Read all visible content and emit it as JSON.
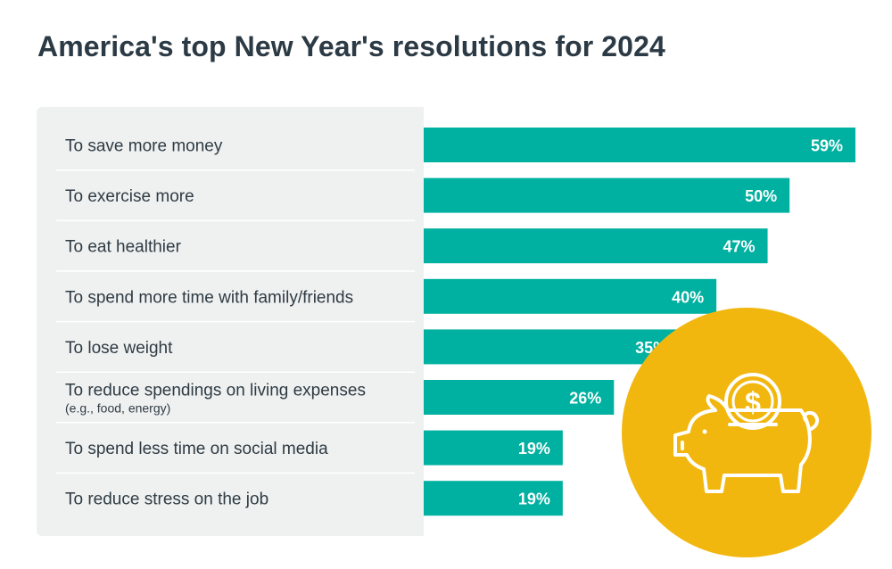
{
  "title": "America's top New Year's resolutions for 2024",
  "colors": {
    "bar": "#00b0a0",
    "panel": "#eff1f1",
    "circle": "#f2b70f",
    "label_text": "#2f3b43",
    "value_text": "#ffffff"
  },
  "icon": "piggy-bank-with-dollar-coin-icon",
  "chart_data": {
    "type": "bar",
    "orientation": "horizontal",
    "categories": [
      {
        "label": "To save more money",
        "sub": ""
      },
      {
        "label": "To exercise more",
        "sub": ""
      },
      {
        "label": "To eat healthier",
        "sub": ""
      },
      {
        "label": "To spend more time with family/friends",
        "sub": ""
      },
      {
        "label": "To lose weight",
        "sub": ""
      },
      {
        "label": "To reduce spendings on living expenses",
        "sub": "(e.g., food, energy)"
      },
      {
        "label": "To spend less time on social media",
        "sub": ""
      },
      {
        "label": "To reduce stress on the job",
        "sub": ""
      }
    ],
    "values": [
      59,
      50,
      47,
      40,
      35,
      26,
      19,
      19
    ],
    "value_labels": [
      "59%",
      "50%",
      "47%",
      "40%",
      "35%",
      "26%",
      "19%",
      "19%"
    ],
    "unit": "%",
    "xlim": [
      0,
      59
    ],
    "grid": false,
    "legend": "none"
  }
}
